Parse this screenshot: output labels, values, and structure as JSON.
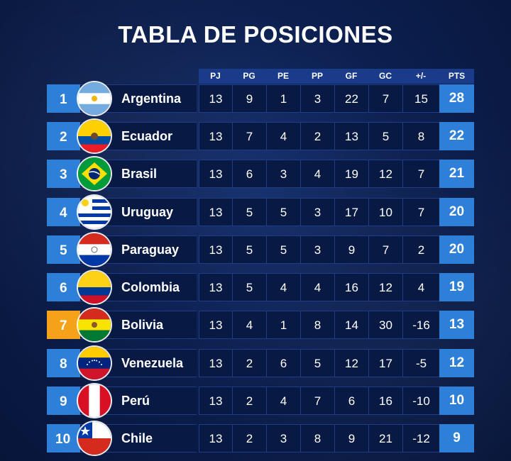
{
  "title": "TABLA DE POSICIONES",
  "columns": [
    "PJ",
    "PG",
    "PE",
    "PP",
    "GF",
    "GC",
    "+/-",
    "PTS"
  ],
  "rows": [
    {
      "pos": "1",
      "team": "Argentina",
      "flag": "argentina-flag-icon",
      "pj": "13",
      "pg": "9",
      "pe": "1",
      "pp": "3",
      "gf": "22",
      "gc": "7",
      "dif": "15",
      "pts": "28"
    },
    {
      "pos": "2",
      "team": "Ecuador",
      "flag": "ecuador-flag-icon",
      "pj": "13",
      "pg": "7",
      "pe": "4",
      "pp": "2",
      "gf": "13",
      "gc": "5",
      "dif": "8",
      "pts": "22"
    },
    {
      "pos": "3",
      "team": "Brasil",
      "flag": "brazil-flag-icon",
      "pj": "13",
      "pg": "6",
      "pe": "3",
      "pp": "4",
      "gf": "19",
      "gc": "12",
      "dif": "7",
      "pts": "21"
    },
    {
      "pos": "4",
      "team": "Uruguay",
      "flag": "uruguay-flag-icon",
      "pj": "13",
      "pg": "5",
      "pe": "5",
      "pp": "3",
      "gf": "17",
      "gc": "10",
      "dif": "7",
      "pts": "20"
    },
    {
      "pos": "5",
      "team": "Paraguay",
      "flag": "paraguay-flag-icon",
      "pj": "13",
      "pg": "5",
      "pe": "5",
      "pp": "3",
      "gf": "9",
      "gc": "7",
      "dif": "2",
      "pts": "20"
    },
    {
      "pos": "6",
      "team": "Colombia",
      "flag": "colombia-flag-icon",
      "pj": "13",
      "pg": "5",
      "pe": "4",
      "pp": "4",
      "gf": "16",
      "gc": "12",
      "dif": "4",
      "pts": "19"
    },
    {
      "pos": "7",
      "team": "Bolivia",
      "flag": "bolivia-flag-icon",
      "pj": "13",
      "pg": "4",
      "pe": "1",
      "pp": "8",
      "gf": "14",
      "gc": "30",
      "dif": "-16",
      "pts": "13"
    },
    {
      "pos": "8",
      "team": "Venezuela",
      "flag": "venezuela-flag-icon",
      "pj": "13",
      "pg": "2",
      "pe": "6",
      "pp": "5",
      "gf": "12",
      "gc": "17",
      "dif": "-5",
      "pts": "12"
    },
    {
      "pos": "9",
      "team": "Perú",
      "flag": "peru-flag-icon",
      "pj": "13",
      "pg": "2",
      "pe": "4",
      "pp": "7",
      "gf": "6",
      "gc": "16",
      "dif": "-10",
      "pts": "10"
    },
    {
      "pos": "10",
      "team": "Chile",
      "flag": "chile-flag-icon",
      "pj": "13",
      "pg": "2",
      "pe": "3",
      "pp": "8",
      "gf": "9",
      "gc": "21",
      "dif": "-12",
      "pts": "9"
    }
  ],
  "colors": {
    "accent": "#2d7fd8",
    "highlight": "#f5a21a",
    "background": "#0c1f4f",
    "cell": "#081a44"
  }
}
